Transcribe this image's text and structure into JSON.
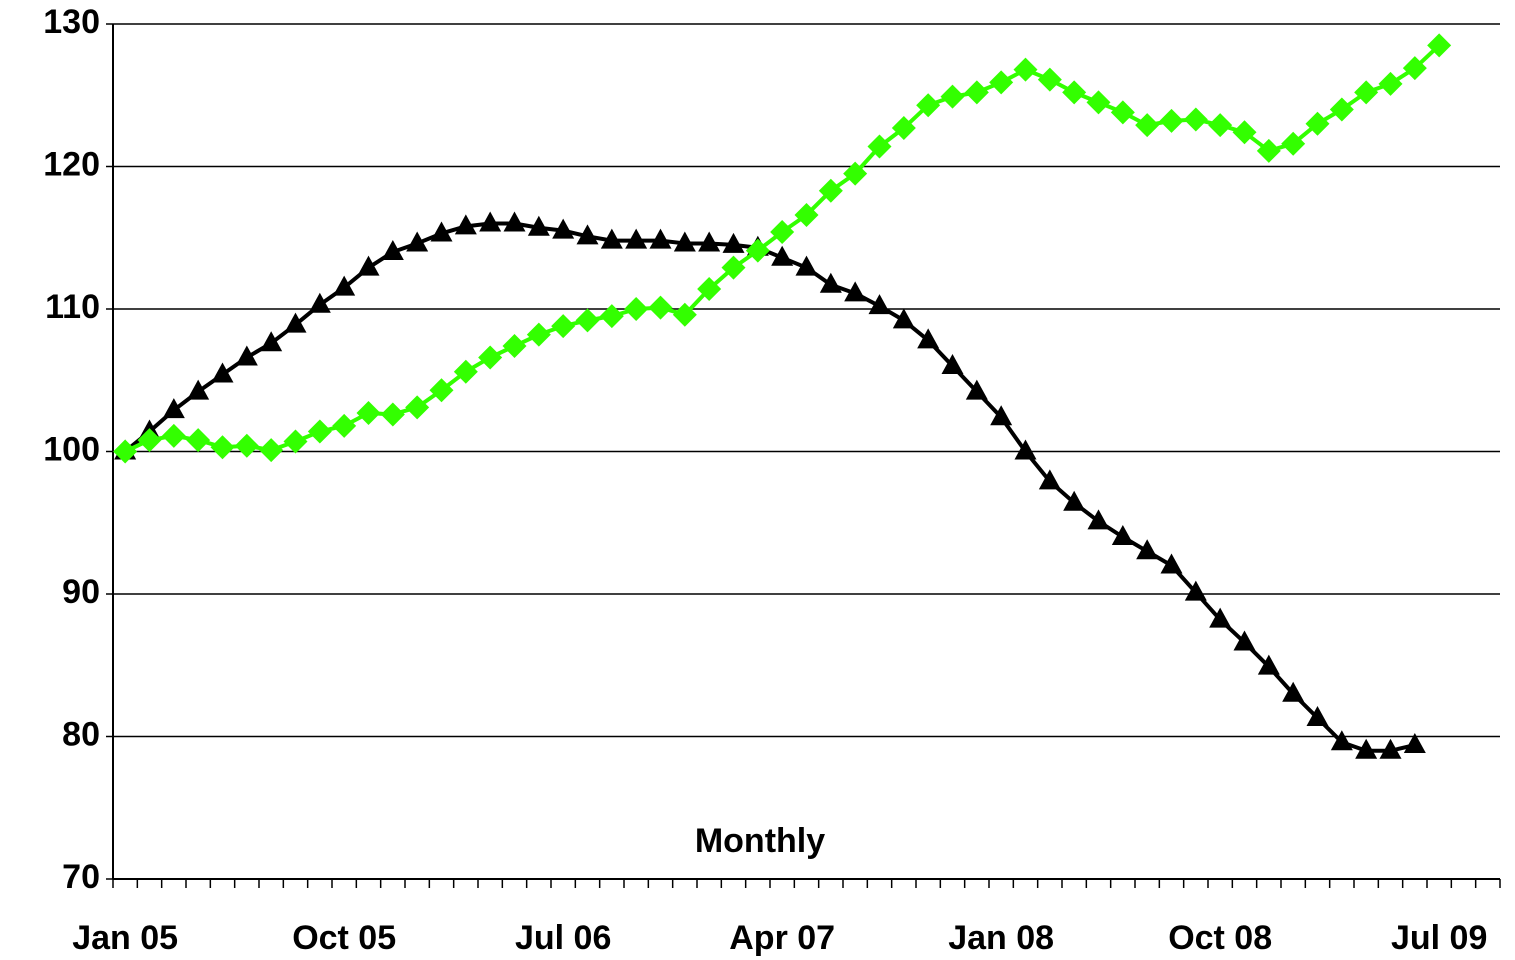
{
  "chart_data": {
    "type": "line",
    "annotation": "Monthly",
    "categories": [
      "Jan 05",
      null,
      null,
      null,
      null,
      null,
      null,
      null,
      null,
      "Oct 05",
      null,
      null,
      null,
      null,
      null,
      null,
      null,
      null,
      "Jul 06",
      null,
      null,
      null,
      null,
      null,
      null,
      null,
      null,
      "Apr 07",
      null,
      null,
      null,
      null,
      null,
      null,
      null,
      null,
      "Jan 08",
      null,
      null,
      null,
      null,
      null,
      null,
      null,
      null,
      "Oct 08",
      null,
      null,
      null,
      null,
      null,
      null,
      null,
      null,
      "Jul 09",
      null,
      null
    ],
    "series": [
      {
        "color": "#000000",
        "marker": "triangle",
        "values": [
          100,
          101.4,
          102.9,
          104.2,
          105.4,
          106.6,
          107.6,
          108.9,
          110.3,
          111.5,
          112.9,
          114,
          114.6,
          115.3,
          115.8,
          116,
          116,
          115.7,
          115.5,
          115.1,
          114.8,
          114.8,
          114.8,
          114.6,
          114.6,
          114.5,
          114.3,
          113.6,
          112.9,
          111.7,
          111.1,
          110.2,
          109.2,
          107.8,
          106,
          104.2,
          102.4,
          100,
          97.9,
          96.4,
          95.1,
          94,
          93,
          92,
          90.1,
          88.2,
          86.6,
          84.9,
          83,
          81.3,
          79.6,
          79,
          79,
          79.4,
          null,
          null,
          null
        ]
      },
      {
        "color": "#33ff00",
        "marker": "diamond",
        "values": [
          100,
          100.8,
          101.1,
          100.8,
          100.3,
          100.4,
          100.1,
          100.7,
          101.4,
          101.8,
          102.7,
          102.6,
          103.1,
          104.3,
          105.6,
          106.6,
          107.4,
          108.2,
          108.8,
          109.2,
          109.5,
          110,
          110.1,
          109.6,
          111.4,
          112.9,
          114.1,
          115.4,
          116.6,
          118.3,
          119.5,
          121.4,
          122.7,
          124.3,
          124.9,
          125.2,
          125.9,
          126.8,
          126.1,
          125.2,
          124.5,
          123.8,
          122.9,
          123.2,
          123.3,
          122.9,
          122.4,
          121.1,
          121.6,
          123,
          124,
          125.2,
          125.8,
          126.9,
          128.5,
          null,
          null
        ]
      }
    ],
    "ylim": [
      70,
      130
    ],
    "yticks": [
      70,
      80,
      90,
      100,
      110,
      120,
      130
    ],
    "grid": true
  }
}
